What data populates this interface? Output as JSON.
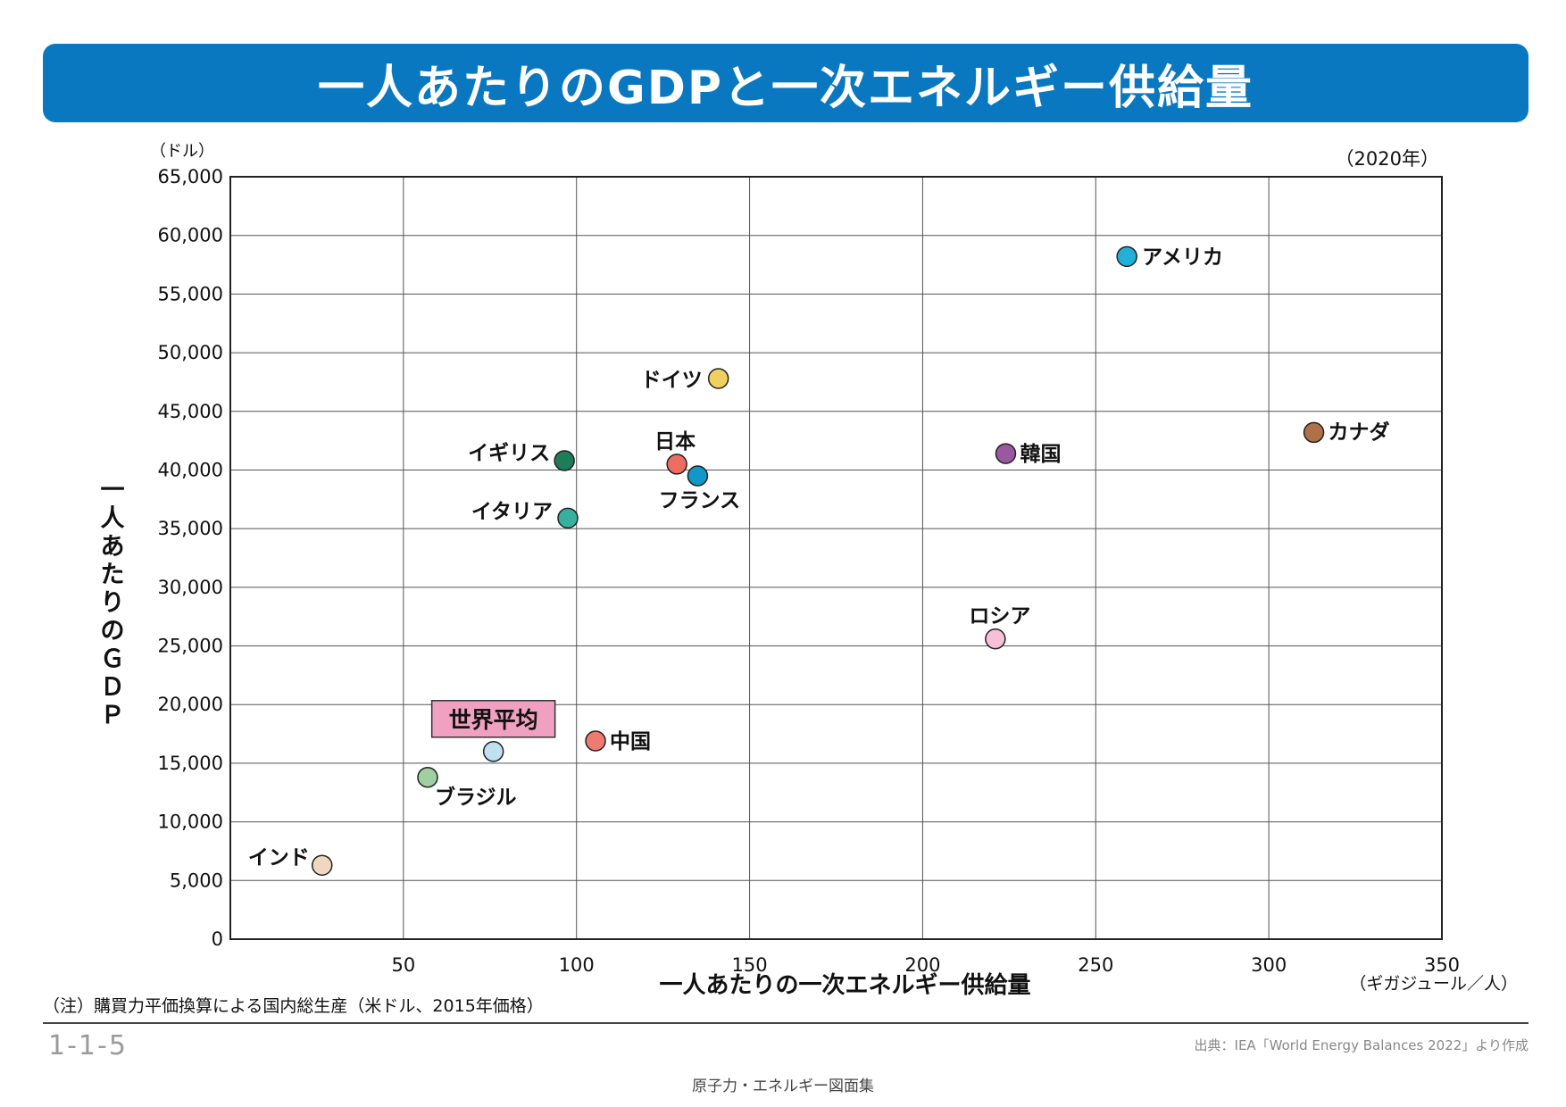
{
  "title": "一人あたりのGDPと一次エネルギー供給量",
  "year_label": "（2020年）",
  "note": "（注）購買力平価換算による国内総生産（米ドル、2015年価格）",
  "figure_number": "1-1-5",
  "source": "出典：IEA「World Energy Balances 2022」より作成",
  "footer": "原子力・エネルギー図面集",
  "colors": {
    "banner": "#0a78c0",
    "world_box": "#f0a0c0"
  },
  "chart_data": {
    "type": "scatter",
    "title": "一人あたりのGDPと一次エネルギー供給量",
    "xlabel": "一人あたりの一次エネルギー供給量",
    "xunit": "（ギガジュール／人）",
    "ylabel": "一人あたりのＧＤＰ",
    "yunit": "（ドル）",
    "xlim": [
      0,
      350
    ],
    "ylim": [
      0,
      65000
    ],
    "x_ticks": [
      "50",
      "100",
      "150",
      "200",
      "250",
      "300",
      "350"
    ],
    "y_ticks": [
      "0",
      "5,000",
      "10,000",
      "15,000",
      "20,000",
      "25,000",
      "30,000",
      "35,000",
      "40,000",
      "45,000",
      "50,000",
      "55,000",
      "60,000",
      "65,000"
    ],
    "grid": true,
    "points": [
      {
        "label": "アメリカ",
        "x": 259,
        "y": 58200,
        "color": "#22b0d8"
      },
      {
        "label": "カナダ",
        "x": 313,
        "y": 43200,
        "color": "#b07048"
      },
      {
        "label": "ドイツ",
        "x": 141,
        "y": 47800,
        "color": "#f0d060"
      },
      {
        "label": "韓国",
        "x": 224,
        "y": 41400,
        "color": "#9a58a0"
      },
      {
        "label": "イギリス",
        "x": 96.5,
        "y": 40800,
        "color": "#1e7c58"
      },
      {
        "label": "日本",
        "x": 129,
        "y": 40500,
        "color": "#ee6d62"
      },
      {
        "label": "フランス",
        "x": 135,
        "y": 39500,
        "color": "#1098c8"
      },
      {
        "label": "イタリア",
        "x": 97.5,
        "y": 35900,
        "color": "#38b0a0"
      },
      {
        "label": "ロシア",
        "x": 221,
        "y": 25600,
        "color": "#f8c0d8"
      },
      {
        "label": "世界平均",
        "x": 76,
        "y": 16000,
        "color": "#bfe0f0"
      },
      {
        "label": "中国",
        "x": 105.5,
        "y": 16900,
        "color": "#ee7a72"
      },
      {
        "label": "ブラジル",
        "x": 57,
        "y": 13800,
        "color": "#a0d0a0"
      },
      {
        "label": "インド",
        "x": 26.5,
        "y": 6300,
        "color": "#f0d8c0"
      }
    ]
  }
}
